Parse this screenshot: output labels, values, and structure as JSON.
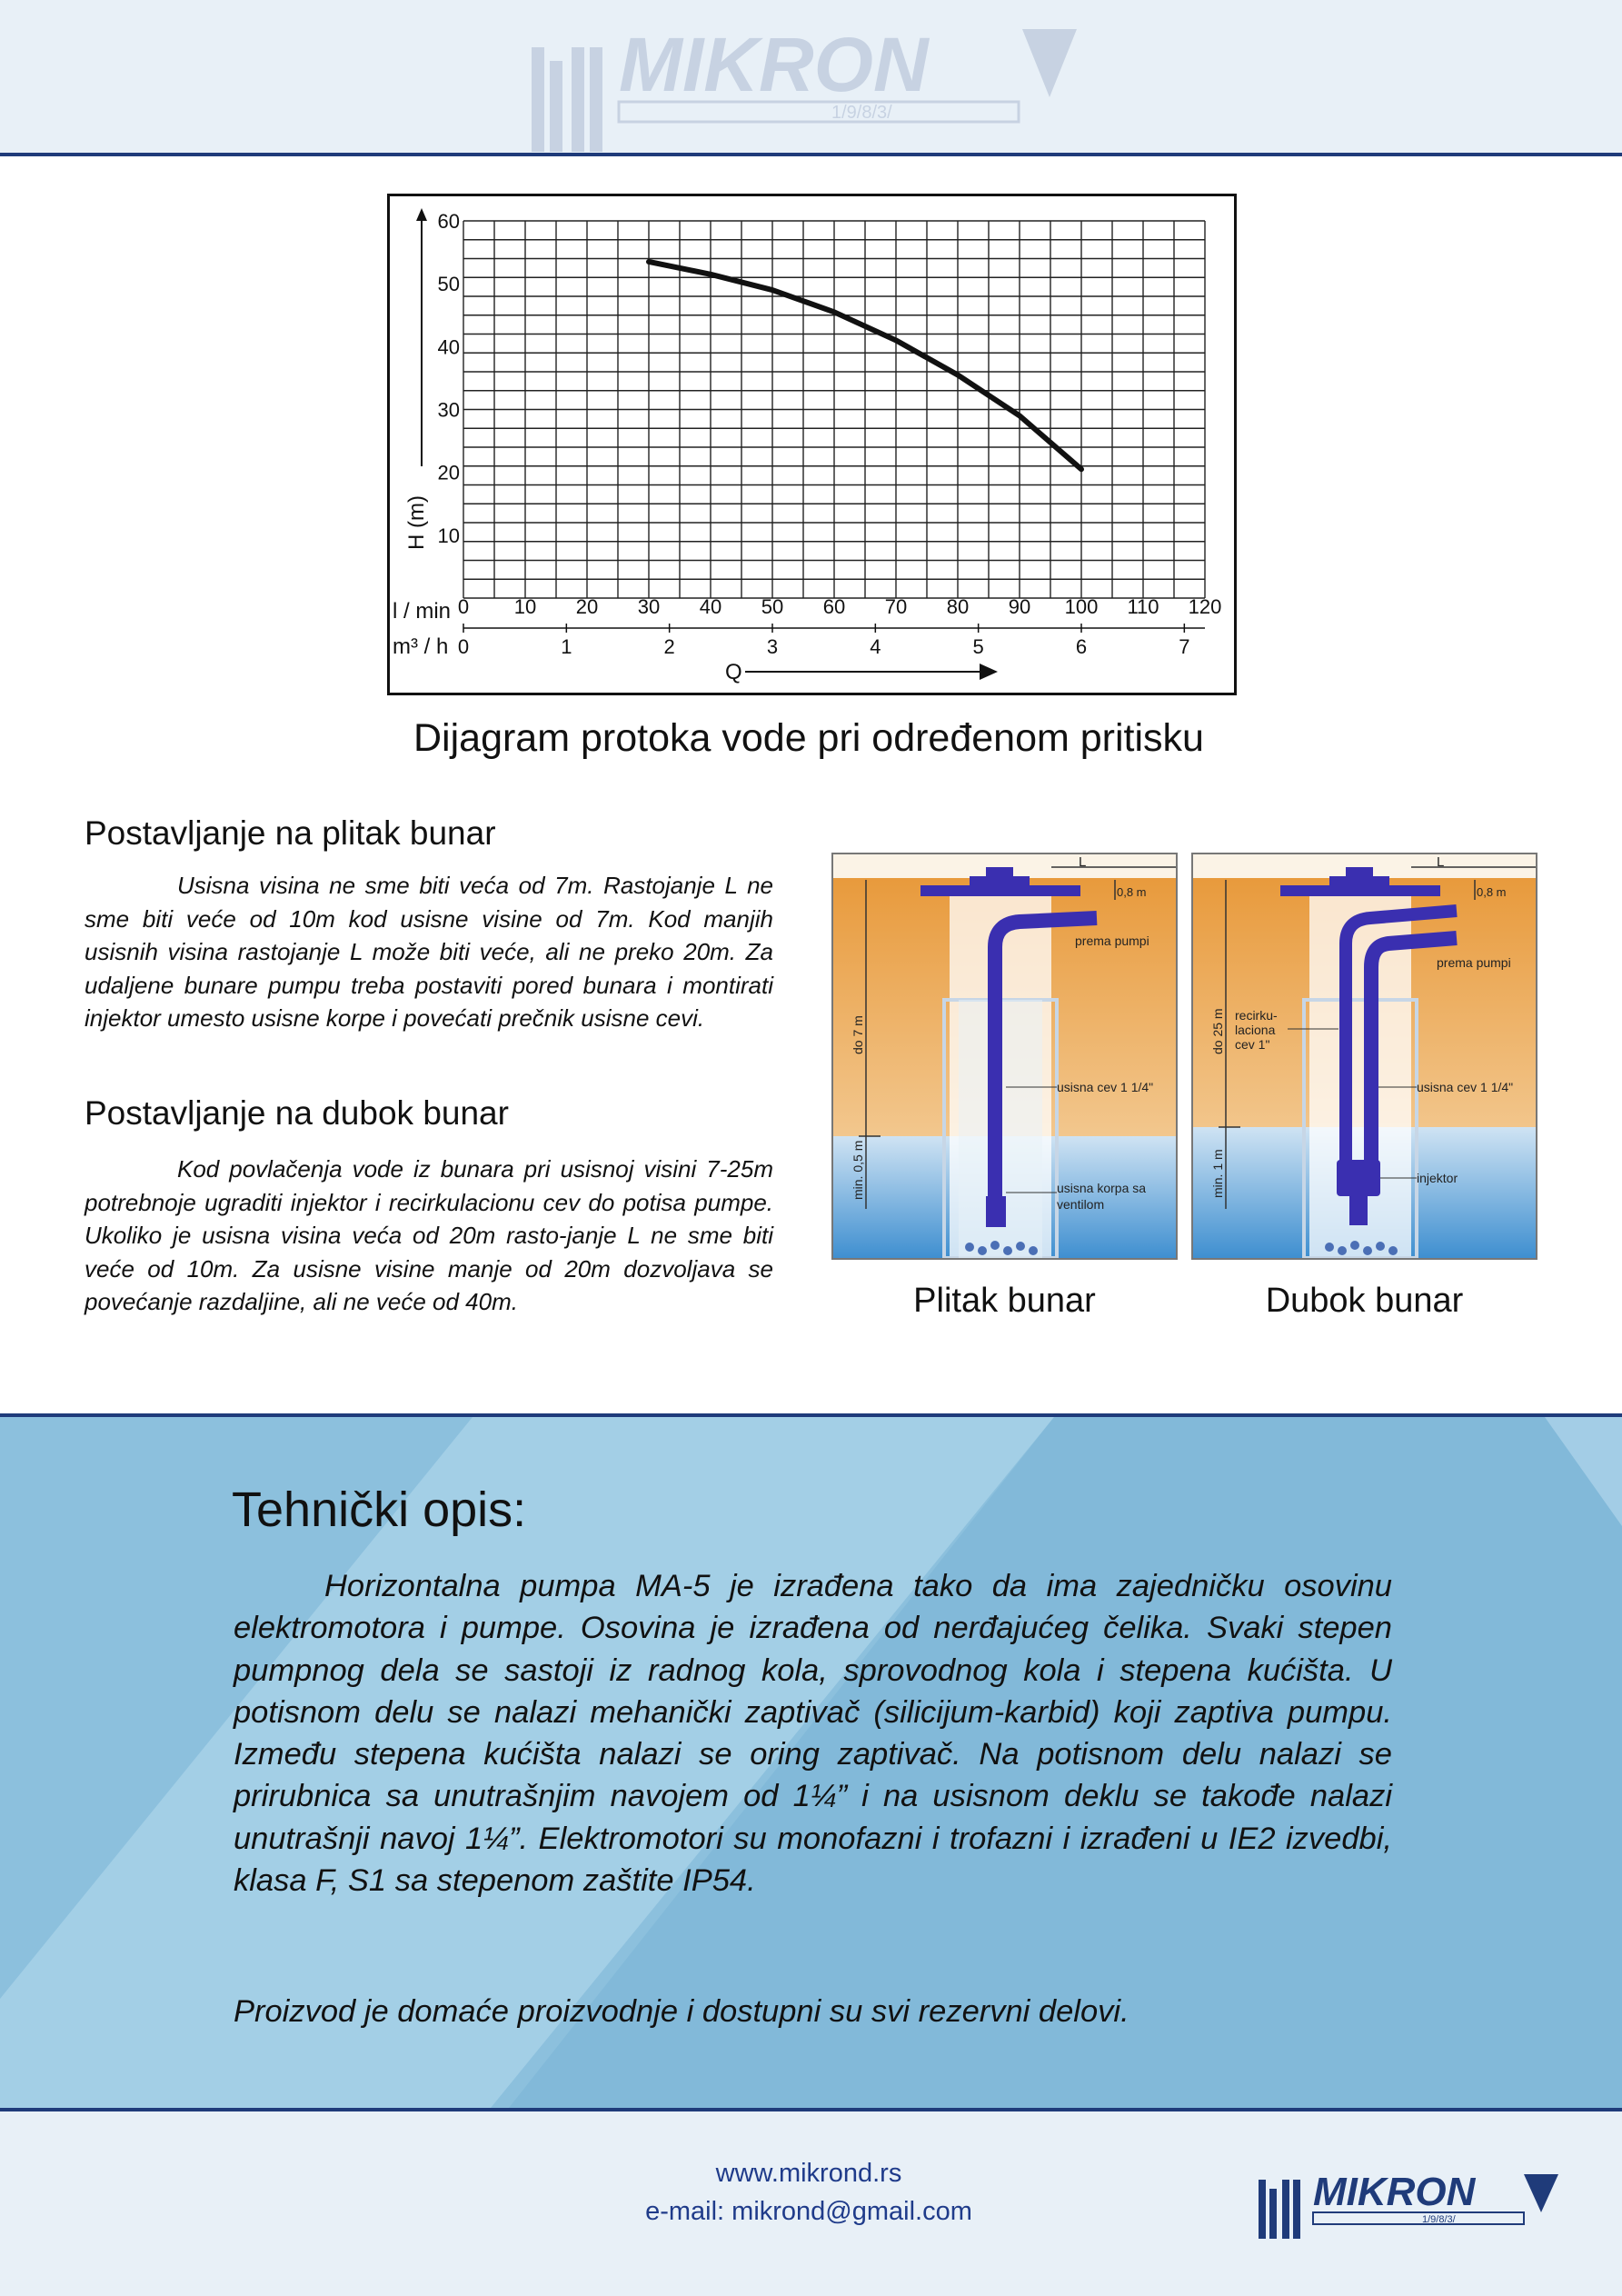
{
  "brand": {
    "name": "MIKRON",
    "year": "1/9/8/3/",
    "colors": {
      "navy": "#1f3b7a",
      "light_bg": "#e8f0f7",
      "panel_blue": "#8dbfdc"
    }
  },
  "chart_data": {
    "type": "line",
    "title": "Dijagram protoka vode pri određenom pritisku",
    "ylabel": "H (m)",
    "xlabel": "Q",
    "x_axis_lmin": {
      "label": "l / min",
      "ticks": [
        "0",
        "10",
        "20",
        "30",
        "40",
        "50",
        "60",
        "70",
        "80",
        "90",
        "100",
        "110",
        "120"
      ]
    },
    "x_axis_m3h": {
      "label": "m³ / h",
      "ticks": [
        "0",
        "1",
        "2",
        "3",
        "4",
        "5",
        "6",
        "7"
      ]
    },
    "y_ticks": [
      "10",
      "20",
      "30",
      "40",
      "50",
      "60"
    ],
    "xlim": [
      0,
      120
    ],
    "ylim": [
      0,
      60
    ],
    "grid": true,
    "series": [
      {
        "x": [
          30,
          40,
          50,
          60,
          70,
          80,
          90,
          100
        ],
        "y": [
          53.5,
          51.5,
          49,
          45.5,
          41,
          35.5,
          29,
          20.5
        ]
      }
    ]
  },
  "shallow": {
    "title": "Postavljanje na plitak bunar",
    "text": "Usisna visina ne sme biti veća od 7m. Rastojanje L ne sme biti veće od 10m kod usisne visine od 7m. Kod manjih usisnih visina rastojanje L može biti veće, ali ne preko 20m. Za udaljene bunare pumpu treba postaviti pored bunara i montirati injektor umesto usisne korpe i povećati prečnik usisne cevi."
  },
  "deep": {
    "title": "Postavljanje na dubok bunar",
    "text": "Kod povlačenja vode iz bunara pri usisnoj visini 7-25m potrebnoje ugraditi injektor i recirkulacionu cev do potisa pumpe. Ukoliko je usisna visina veća od 20m rasto-janje L ne sme biti veće od 10m. Za usisne visine manje od 20m dozvoljava se povećanje razdaljine, ali ne veće od 40m."
  },
  "well_shallow": {
    "caption": "Plitak bunar",
    "labels": {
      "L": "L",
      "gap": "0,8 m",
      "to_pump": "prema pumpi",
      "depth": "do 7 m",
      "pipe": "usisna cev 1 1/4\"",
      "min": "min. 0,5 m",
      "basket1": "usisna korpa sa",
      "basket2": "ventilom"
    }
  },
  "well_deep": {
    "caption": "Dubok bunar",
    "labels": {
      "L": "L",
      "gap": "0,8 m",
      "to_pump": "prema pumpi",
      "recirc1": "recirku-",
      "recirc2": "laciona",
      "recirc3": "cev 1\"",
      "depth": "do 25 m",
      "pipe": "usisna cev 1 1/4\"",
      "min": "min. 1 m",
      "injector": "injektor"
    }
  },
  "tech": {
    "title": "Tehnički opis:",
    "text": "Horizontalna pumpa MA-5 je izrađena tako da ima zajedničku osovinu elektromotora i pumpe. Osovina je izrađena od nerđajućeg čelika. Svaki stepen pumpnog dela se sastoji iz radnog kola, sprovodnog kola i stepena kućišta. U potisnom delu se nalazi mehanički zaptivač (silicijum-karbid) koji zaptiva pumpu. Između stepena kućišta nalazi se oring zaptivač. Na potisnom delu nalazi se prirubnica sa unutrašnjim navojem od 1¼” i na usisnom deklu se takođe nalazi unutrašnji navoj 1¼”. Elektromotori su monofazni i trofazni i izrađeni u IE2 izvedbi, klasa F, S1 sa stepenom zaštite IP54.",
    "note": "Proizvod je domaće proizvodnje i dostupni su svi rezervni delovi."
  },
  "footer": {
    "website": "www.mikrond.rs",
    "email": "e-mail: mikrond@gmail.com"
  }
}
